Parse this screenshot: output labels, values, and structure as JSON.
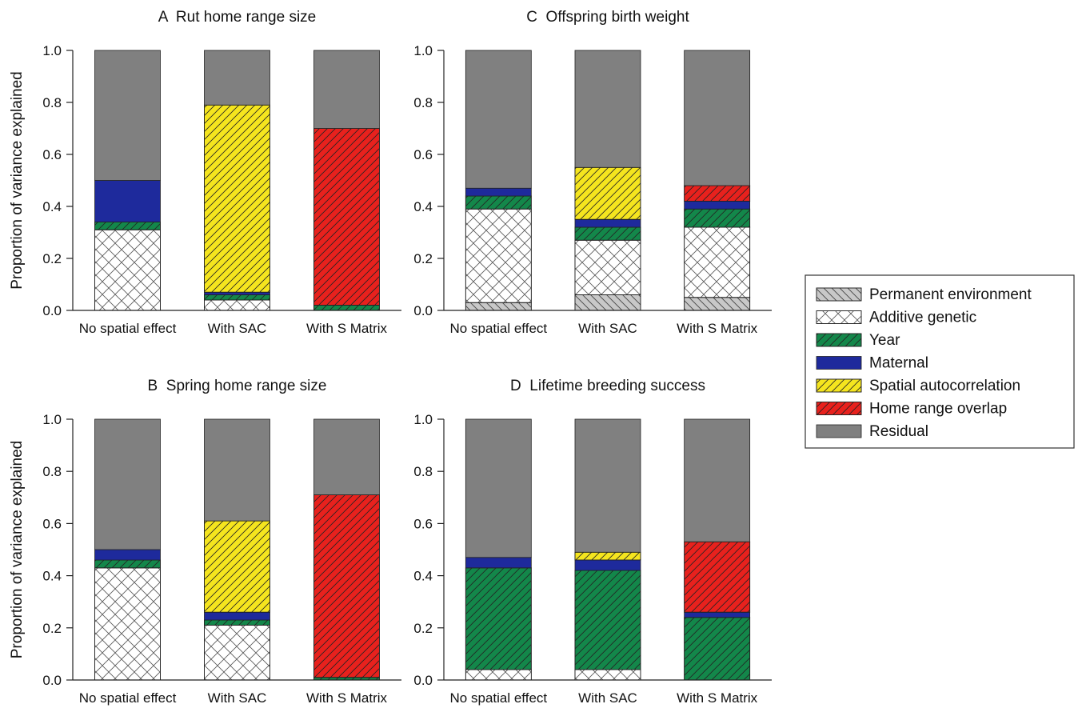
{
  "legend": {
    "placement": "right",
    "items": [
      {
        "key": "permanent_env",
        "label": "Permanent environment",
        "color": "#c8c8c8",
        "pattern": "hatch-back"
      },
      {
        "key": "additive",
        "label": "Additive genetic",
        "color": "#ffffff",
        "pattern": "crosshatch"
      },
      {
        "key": "year",
        "label": "Year",
        "color": "#13874a",
        "pattern": "hatch"
      },
      {
        "key": "maternal",
        "label": "Maternal",
        "color": "#1e2a9c",
        "pattern": "solid"
      },
      {
        "key": "spatial",
        "label": "Spatial autocorrelation",
        "color": "#f5e51e",
        "pattern": "hatch"
      },
      {
        "key": "overlap",
        "label": "Home range overlap",
        "color": "#e8211d",
        "pattern": "hatch"
      },
      {
        "key": "residual",
        "label": "Residual",
        "color": "#808080",
        "pattern": "solid"
      }
    ]
  },
  "chart_data": [
    {
      "type": "bar",
      "stacked": true,
      "title": "A  Rut home range size",
      "ylabel": "Proportion of variance explained",
      "ylim": [
        0,
        1.0
      ],
      "yticks": [
        "0.0",
        "0.2",
        "0.4",
        "0.6",
        "0.8",
        "1.0"
      ],
      "categories": [
        "No spatial effect",
        "With SAC",
        "With S Matrix"
      ],
      "series": [
        {
          "name": "Permanent environment",
          "values": [
            0.0,
            0.0,
            0.0
          ]
        },
        {
          "name": "Additive genetic",
          "values": [
            0.31,
            0.04,
            0.0
          ]
        },
        {
          "name": "Year",
          "values": [
            0.03,
            0.02,
            0.02
          ]
        },
        {
          "name": "Maternal",
          "values": [
            0.16,
            0.01,
            0.0
          ]
        },
        {
          "name": "Spatial autocorrelation",
          "values": [
            0.0,
            0.72,
            0.0
          ]
        },
        {
          "name": "Home range overlap",
          "values": [
            0.0,
            0.0,
            0.68
          ]
        },
        {
          "name": "Residual",
          "values": [
            0.5,
            0.21,
            0.3
          ]
        }
      ]
    },
    {
      "type": "bar",
      "stacked": true,
      "title": "C  Offspring birth weight",
      "ylabel": "",
      "ylim": [
        0,
        1.0
      ],
      "yticks": [
        "0.0",
        "0.2",
        "0.4",
        "0.6",
        "0.8",
        "1.0"
      ],
      "categories": [
        "No spatial effect",
        "With SAC",
        "With S Matrix"
      ],
      "series": [
        {
          "name": "Permanent environment",
          "values": [
            0.03,
            0.06,
            0.05
          ]
        },
        {
          "name": "Additive genetic",
          "values": [
            0.36,
            0.21,
            0.27
          ]
        },
        {
          "name": "Year",
          "values": [
            0.05,
            0.05,
            0.07
          ]
        },
        {
          "name": "Maternal",
          "values": [
            0.03,
            0.03,
            0.03
          ]
        },
        {
          "name": "Spatial autocorrelation",
          "values": [
            0.0,
            0.2,
            0.0
          ]
        },
        {
          "name": "Home range overlap",
          "values": [
            0.0,
            0.0,
            0.06
          ]
        },
        {
          "name": "Residual",
          "values": [
            0.53,
            0.45,
            0.52
          ]
        }
      ]
    },
    {
      "type": "bar",
      "stacked": true,
      "title": "B  Spring home range size",
      "ylabel": "Proportion of variance explained",
      "ylim": [
        0,
        1.0
      ],
      "yticks": [
        "0.0",
        "0.2",
        "0.4",
        "0.6",
        "0.8",
        "1.0"
      ],
      "categories": [
        "No spatial effect",
        "With SAC",
        "With S Matrix"
      ],
      "series": [
        {
          "name": "Permanent environment",
          "values": [
            0.0,
            0.0,
            0.0
          ]
        },
        {
          "name": "Additive genetic",
          "values": [
            0.43,
            0.21,
            0.0
          ]
        },
        {
          "name": "Year",
          "values": [
            0.03,
            0.02,
            0.01
          ]
        },
        {
          "name": "Maternal",
          "values": [
            0.04,
            0.03,
            0.0
          ]
        },
        {
          "name": "Spatial autocorrelation",
          "values": [
            0.0,
            0.35,
            0.0
          ]
        },
        {
          "name": "Home range overlap",
          "values": [
            0.0,
            0.0,
            0.7
          ]
        },
        {
          "name": "Residual",
          "values": [
            0.5,
            0.39,
            0.29
          ]
        }
      ]
    },
    {
      "type": "bar",
      "stacked": true,
      "title": "D  Lifetime breeding success",
      "ylabel": "",
      "ylim": [
        0,
        1.0
      ],
      "yticks": [
        "0.0",
        "0.2",
        "0.4",
        "0.6",
        "0.8",
        "1.0"
      ],
      "categories": [
        "No spatial effect",
        "With SAC",
        "With S Matrix"
      ],
      "series": [
        {
          "name": "Permanent environment",
          "values": [
            0.0,
            0.0,
            0.0
          ]
        },
        {
          "name": "Additive genetic",
          "values": [
            0.04,
            0.04,
            0.0
          ]
        },
        {
          "name": "Year",
          "values": [
            0.39,
            0.38,
            0.24
          ]
        },
        {
          "name": "Maternal",
          "values": [
            0.04,
            0.04,
            0.02
          ]
        },
        {
          "name": "Spatial autocorrelation",
          "values": [
            0.0,
            0.03,
            0.0
          ]
        },
        {
          "name": "Home range overlap",
          "values": [
            0.0,
            0.0,
            0.27
          ]
        },
        {
          "name": "Residual",
          "values": [
            0.53,
            0.51,
            0.47
          ]
        }
      ]
    }
  ]
}
